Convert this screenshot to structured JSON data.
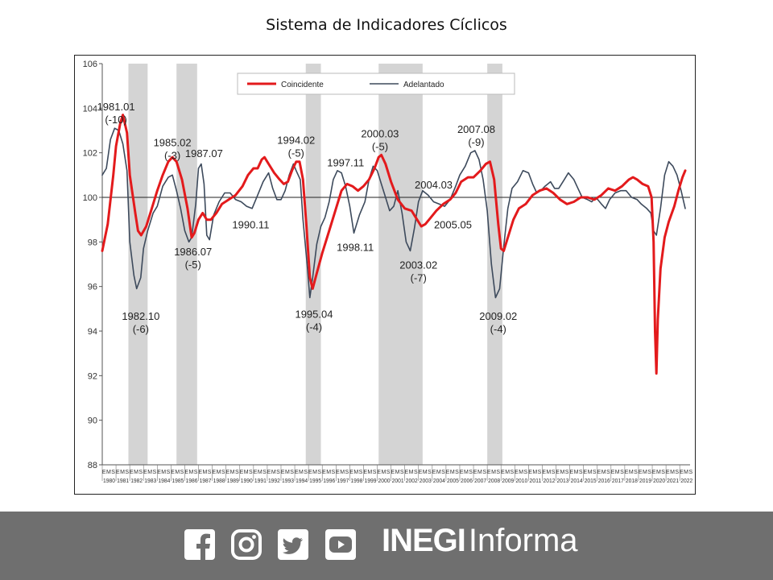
{
  "page": {
    "title": "Sistema de Indicadores Cíclicos"
  },
  "chart_data": {
    "type": "line",
    "title": "Sistema de Indicadores Cíclicos",
    "ylim": [
      88,
      106
    ],
    "yticks": [
      88,
      90,
      92,
      94,
      96,
      98,
      100,
      102,
      104,
      106
    ],
    "xlim": [
      1980.0,
      2022.75
    ],
    "reference_line": 100,
    "x_tick_years": [
      "1980",
      "1981",
      "1982",
      "1983",
      "1984",
      "1985",
      "1986",
      "1987",
      "1988",
      "1989",
      "1990",
      "1991",
      "1992",
      "1993",
      "1994",
      "1995",
      "1996",
      "1997",
      "1998",
      "1999",
      "2000",
      "2001",
      "2002",
      "2003",
      "2004",
      "2005",
      "2006",
      "2007",
      "2008",
      "2009",
      "2010",
      "2011",
      "2012",
      "2013",
      "2014",
      "2015",
      "2016",
      "2017",
      "2018",
      "2019",
      "2020",
      "2021",
      "2022"
    ],
    "x_subticks": [
      "E",
      "M",
      "S"
    ],
    "recessions": [
      [
        1981.9,
        1983.3
      ],
      [
        1985.4,
        1986.9
      ],
      [
        1994.8,
        1995.9
      ],
      [
        2000.1,
        2003.3
      ],
      [
        2008.0,
        2009.1
      ]
    ],
    "legend": {
      "position": "top",
      "entries": [
        "Coincidente",
        "Adelantado"
      ]
    },
    "series": [
      {
        "name": "Coincidente",
        "color": "#e31a1c",
        "points": [
          [
            1980.0,
            97.6
          ],
          [
            1980.4,
            98.8
          ],
          [
            1980.8,
            101.0
          ],
          [
            1981.0,
            102.3
          ],
          [
            1981.3,
            103.3
          ],
          [
            1981.5,
            103.7
          ],
          [
            1981.8,
            102.9
          ],
          [
            1982.0,
            101.0
          ],
          [
            1982.4,
            99.3
          ],
          [
            1982.6,
            98.5
          ],
          [
            1982.83,
            98.3
          ],
          [
            1983.2,
            98.7
          ],
          [
            1983.6,
            99.5
          ],
          [
            1984.0,
            100.3
          ],
          [
            1984.4,
            101.0
          ],
          [
            1984.8,
            101.6
          ],
          [
            1985.1,
            101.8
          ],
          [
            1985.4,
            101.6
          ],
          [
            1985.8,
            100.8
          ],
          [
            1986.2,
            99.5
          ],
          [
            1986.5,
            98.2
          ],
          [
            1986.7,
            98.4
          ],
          [
            1987.0,
            99.0
          ],
          [
            1987.3,
            99.3
          ],
          [
            1987.6,
            99.0
          ],
          [
            1987.9,
            99.0
          ],
          [
            1988.3,
            99.3
          ],
          [
            1988.7,
            99.7
          ],
          [
            1989.2,
            99.9
          ],
          [
            1989.7,
            100.1
          ],
          [
            1990.2,
            100.5
          ],
          [
            1990.6,
            101.0
          ],
          [
            1991.0,
            101.3
          ],
          [
            1991.3,
            101.3
          ],
          [
            1991.6,
            101.7
          ],
          [
            1991.8,
            101.8
          ],
          [
            1992.1,
            101.5
          ],
          [
            1992.5,
            101.1
          ],
          [
            1992.9,
            100.8
          ],
          [
            1993.2,
            100.6
          ],
          [
            1993.5,
            100.7
          ],
          [
            1993.8,
            101.2
          ],
          [
            1994.1,
            101.6
          ],
          [
            1994.35,
            101.6
          ],
          [
            1994.6,
            100.8
          ],
          [
            1994.85,
            98.7
          ],
          [
            1995.1,
            96.4
          ],
          [
            1995.3,
            95.9
          ],
          [
            1995.6,
            96.6
          ],
          [
            1996.0,
            97.5
          ],
          [
            1996.5,
            98.5
          ],
          [
            1997.0,
            99.5
          ],
          [
            1997.4,
            100.3
          ],
          [
            1997.8,
            100.6
          ],
          [
            1998.2,
            100.5
          ],
          [
            1998.6,
            100.3
          ],
          [
            1999.0,
            100.5
          ],
          [
            1999.4,
            100.8
          ],
          [
            1999.8,
            101.3
          ],
          [
            2000.1,
            101.8
          ],
          [
            2000.3,
            101.9
          ],
          [
            2000.6,
            101.5
          ],
          [
            2001.0,
            100.7
          ],
          [
            2001.5,
            99.9
          ],
          [
            2002.0,
            99.5
          ],
          [
            2002.5,
            99.4
          ],
          [
            2002.9,
            99.0
          ],
          [
            2003.2,
            98.7
          ],
          [
            2003.5,
            98.8
          ],
          [
            2003.9,
            99.1
          ],
          [
            2004.3,
            99.4
          ],
          [
            2004.8,
            99.7
          ],
          [
            2005.3,
            99.9
          ],
          [
            2005.7,
            100.2
          ],
          [
            2006.1,
            100.7
          ],
          [
            2006.6,
            100.9
          ],
          [
            2007.0,
            100.9
          ],
          [
            2007.5,
            101.2
          ],
          [
            2007.9,
            101.5
          ],
          [
            2008.2,
            101.6
          ],
          [
            2008.5,
            100.8
          ],
          [
            2008.8,
            98.8
          ],
          [
            2009.0,
            97.7
          ],
          [
            2009.2,
            97.6
          ],
          [
            2009.5,
            98.2
          ],
          [
            2009.9,
            99.0
          ],
          [
            2010.3,
            99.5
          ],
          [
            2010.8,
            99.7
          ],
          [
            2011.3,
            100.1
          ],
          [
            2011.8,
            100.3
          ],
          [
            2012.3,
            100.4
          ],
          [
            2012.8,
            100.2
          ],
          [
            2013.3,
            99.9
          ],
          [
            2013.8,
            99.7
          ],
          [
            2014.3,
            99.8
          ],
          [
            2014.8,
            100.0
          ],
          [
            2015.3,
            100.0
          ],
          [
            2015.8,
            99.9
          ],
          [
            2016.3,
            100.1
          ],
          [
            2016.8,
            100.4
          ],
          [
            2017.3,
            100.3
          ],
          [
            2017.8,
            100.5
          ],
          [
            2018.3,
            100.8
          ],
          [
            2018.6,
            100.9
          ],
          [
            2018.9,
            100.8
          ],
          [
            2019.3,
            100.6
          ],
          [
            2019.7,
            100.5
          ],
          [
            2019.95,
            100.0
          ],
          [
            2020.1,
            98.0
          ],
          [
            2020.2,
            94.0
          ],
          [
            2020.3,
            92.1
          ],
          [
            2020.4,
            94.5
          ],
          [
            2020.6,
            96.8
          ],
          [
            2020.9,
            98.2
          ],
          [
            2021.2,
            98.9
          ],
          [
            2021.6,
            99.6
          ],
          [
            2021.9,
            100.3
          ],
          [
            2022.2,
            100.9
          ],
          [
            2022.4,
            101.2
          ]
        ]
      },
      {
        "name": "Adelantado",
        "color": "#3d4a5c",
        "points": [
          [
            1980.0,
            101.0
          ],
          [
            1980.3,
            101.3
          ],
          [
            1980.6,
            102.6
          ],
          [
            1980.9,
            103.1
          ],
          [
            1981.2,
            103.0
          ],
          [
            1981.5,
            102.4
          ],
          [
            1981.8,
            101.2
          ],
          [
            1982.0,
            98.0
          ],
          [
            1982.3,
            96.5
          ],
          [
            1982.5,
            95.9
          ],
          [
            1982.8,
            96.4
          ],
          [
            1983.0,
            97.7
          ],
          [
            1983.3,
            98.5
          ],
          [
            1983.7,
            99.3
          ],
          [
            1984.0,
            99.6
          ],
          [
            1984.4,
            100.5
          ],
          [
            1984.8,
            100.9
          ],
          [
            1985.1,
            101.0
          ],
          [
            1985.4,
            100.3
          ],
          [
            1985.7,
            99.5
          ],
          [
            1986.0,
            98.5
          ],
          [
            1986.3,
            98.0
          ],
          [
            1986.5,
            98.2
          ],
          [
            1986.8,
            99.7
          ],
          [
            1987.0,
            101.3
          ],
          [
            1987.2,
            101.5
          ],
          [
            1987.4,
            100.6
          ],
          [
            1987.6,
            98.3
          ],
          [
            1987.8,
            98.1
          ],
          [
            1988.1,
            99.2
          ],
          [
            1988.5,
            99.8
          ],
          [
            1988.9,
            100.2
          ],
          [
            1989.3,
            100.2
          ],
          [
            1989.7,
            99.9
          ],
          [
            1990.1,
            99.8
          ],
          [
            1990.5,
            99.6
          ],
          [
            1990.9,
            99.5
          ],
          [
            1991.3,
            100.1
          ],
          [
            1991.7,
            100.7
          ],
          [
            1992.1,
            101.1
          ],
          [
            1992.4,
            100.4
          ],
          [
            1992.7,
            99.9
          ],
          [
            1993.0,
            99.9
          ],
          [
            1993.3,
            100.3
          ],
          [
            1993.6,
            101.0
          ],
          [
            1993.9,
            101.5
          ],
          [
            1994.1,
            101.2
          ],
          [
            1994.4,
            100.8
          ],
          [
            1994.6,
            99.0
          ],
          [
            1994.9,
            97.0
          ],
          [
            1995.1,
            95.5
          ],
          [
            1995.3,
            96.4
          ],
          [
            1995.6,
            97.9
          ],
          [
            1995.9,
            98.7
          ],
          [
            1996.2,
            99.1
          ],
          [
            1996.5,
            99.8
          ],
          [
            1996.8,
            100.8
          ],
          [
            1997.1,
            101.2
          ],
          [
            1997.4,
            101.1
          ],
          [
            1997.7,
            100.5
          ],
          [
            1998.0,
            99.6
          ],
          [
            1998.3,
            98.4
          ],
          [
            1998.7,
            99.2
          ],
          [
            1999.1,
            99.8
          ],
          [
            1999.4,
            100.8
          ],
          [
            1999.7,
            101.4
          ],
          [
            2000.0,
            101.2
          ],
          [
            2000.3,
            100.6
          ],
          [
            2000.6,
            100.0
          ],
          [
            2000.9,
            99.4
          ],
          [
            2001.2,
            99.6
          ],
          [
            2001.5,
            100.3
          ],
          [
            2001.8,
            99.3
          ],
          [
            2002.1,
            98.0
          ],
          [
            2002.4,
            97.6
          ],
          [
            2002.7,
            98.6
          ],
          [
            2003.0,
            99.8
          ],
          [
            2003.3,
            100.3
          ],
          [
            2003.7,
            100.1
          ],
          [
            2004.1,
            99.8
          ],
          [
            2004.5,
            99.7
          ],
          [
            2004.9,
            99.6
          ],
          [
            2005.3,
            99.9
          ],
          [
            2005.7,
            100.5
          ],
          [
            2006.0,
            101.0
          ],
          [
            2006.4,
            101.4
          ],
          [
            2006.8,
            102.0
          ],
          [
            2007.1,
            102.1
          ],
          [
            2007.4,
            101.7
          ],
          [
            2007.7,
            100.8
          ],
          [
            2008.0,
            99.4
          ],
          [
            2008.3,
            97.0
          ],
          [
            2008.6,
            95.5
          ],
          [
            2008.9,
            95.9
          ],
          [
            2009.2,
            97.8
          ],
          [
            2009.5,
            99.5
          ],
          [
            2009.8,
            100.4
          ],
          [
            2010.2,
            100.7
          ],
          [
            2010.6,
            101.2
          ],
          [
            2011.0,
            101.1
          ],
          [
            2011.3,
            100.6
          ],
          [
            2011.6,
            100.2
          ],
          [
            2011.9,
            100.3
          ],
          [
            2012.2,
            100.5
          ],
          [
            2012.6,
            100.7
          ],
          [
            2012.9,
            100.4
          ],
          [
            2013.2,
            100.4
          ],
          [
            2013.6,
            100.8
          ],
          [
            2013.9,
            101.1
          ],
          [
            2014.3,
            100.8
          ],
          [
            2014.6,
            100.4
          ],
          [
            2014.9,
            100.0
          ],
          [
            2015.3,
            99.9
          ],
          [
            2015.6,
            99.8
          ],
          [
            2015.9,
            100.0
          ],
          [
            2016.3,
            99.7
          ],
          [
            2016.6,
            99.5
          ],
          [
            2016.9,
            99.9
          ],
          [
            2017.3,
            100.2
          ],
          [
            2017.7,
            100.3
          ],
          [
            2018.1,
            100.3
          ],
          [
            2018.5,
            100.0
          ],
          [
            2018.9,
            99.9
          ],
          [
            2019.2,
            99.7
          ],
          [
            2019.6,
            99.5
          ],
          [
            2019.9,
            99.3
          ],
          [
            2020.1,
            98.5
          ],
          [
            2020.3,
            98.3
          ],
          [
            2020.6,
            99.5
          ],
          [
            2020.9,
            101.0
          ],
          [
            2021.2,
            101.6
          ],
          [
            2021.5,
            101.4
          ],
          [
            2021.8,
            101.0
          ],
          [
            2022.1,
            100.3
          ],
          [
            2022.4,
            99.5
          ]
        ]
      }
    ],
    "annotations": [
      {
        "lines": [
          "1981.01",
          "(-10)"
        ],
        "x": 1981.0,
        "y": 103.9
      },
      {
        "lines": [
          "1982.10",
          "(-6)"
        ],
        "x": 1982.8,
        "y": 94.5
      },
      {
        "lines": [
          "1985.02",
          "(-3)"
        ],
        "x": 1985.1,
        "y": 102.3
      },
      {
        "lines": [
          "1987.07"
        ],
        "x": 1987.4,
        "y": 101.8
      },
      {
        "lines": [
          "1986.07",
          "(-5)"
        ],
        "x": 1986.6,
        "y": 97.4
      },
      {
        "lines": [
          "1990.11"
        ],
        "x": 1990.8,
        "y": 98.6
      },
      {
        "lines": [
          "1994.02",
          "(-5)"
        ],
        "x": 1994.1,
        "y": 102.4
      },
      {
        "lines": [
          "1995.04",
          "(-4)"
        ],
        "x": 1995.4,
        "y": 94.6
      },
      {
        "lines": [
          "1997.11"
        ],
        "x": 1997.7,
        "y": 101.4
      },
      {
        "lines": [
          "1998.11"
        ],
        "x": 1998.4,
        "y": 97.6
      },
      {
        "lines": [
          "2000.03",
          "(-5)"
        ],
        "x": 2000.2,
        "y": 102.7
      },
      {
        "lines": [
          "2003.02",
          "(-7)"
        ],
        "x": 2003.0,
        "y": 96.8
      },
      {
        "lines": [
          "2004.03"
        ],
        "x": 2004.1,
        "y": 100.4
      },
      {
        "lines": [
          "2005.05"
        ],
        "x": 2005.5,
        "y": 98.6
      },
      {
        "lines": [
          "2007.08",
          "(-9)"
        ],
        "x": 2007.2,
        "y": 102.9
      },
      {
        "lines": [
          "2009.02",
          "(-4)"
        ],
        "x": 2008.8,
        "y": 94.5
      }
    ]
  },
  "footer": {
    "brand_bold": "INEGI",
    "brand_light": "Informa",
    "social_icons": [
      "facebook-icon",
      "instagram-icon",
      "twitter-icon",
      "youtube-icon"
    ]
  }
}
